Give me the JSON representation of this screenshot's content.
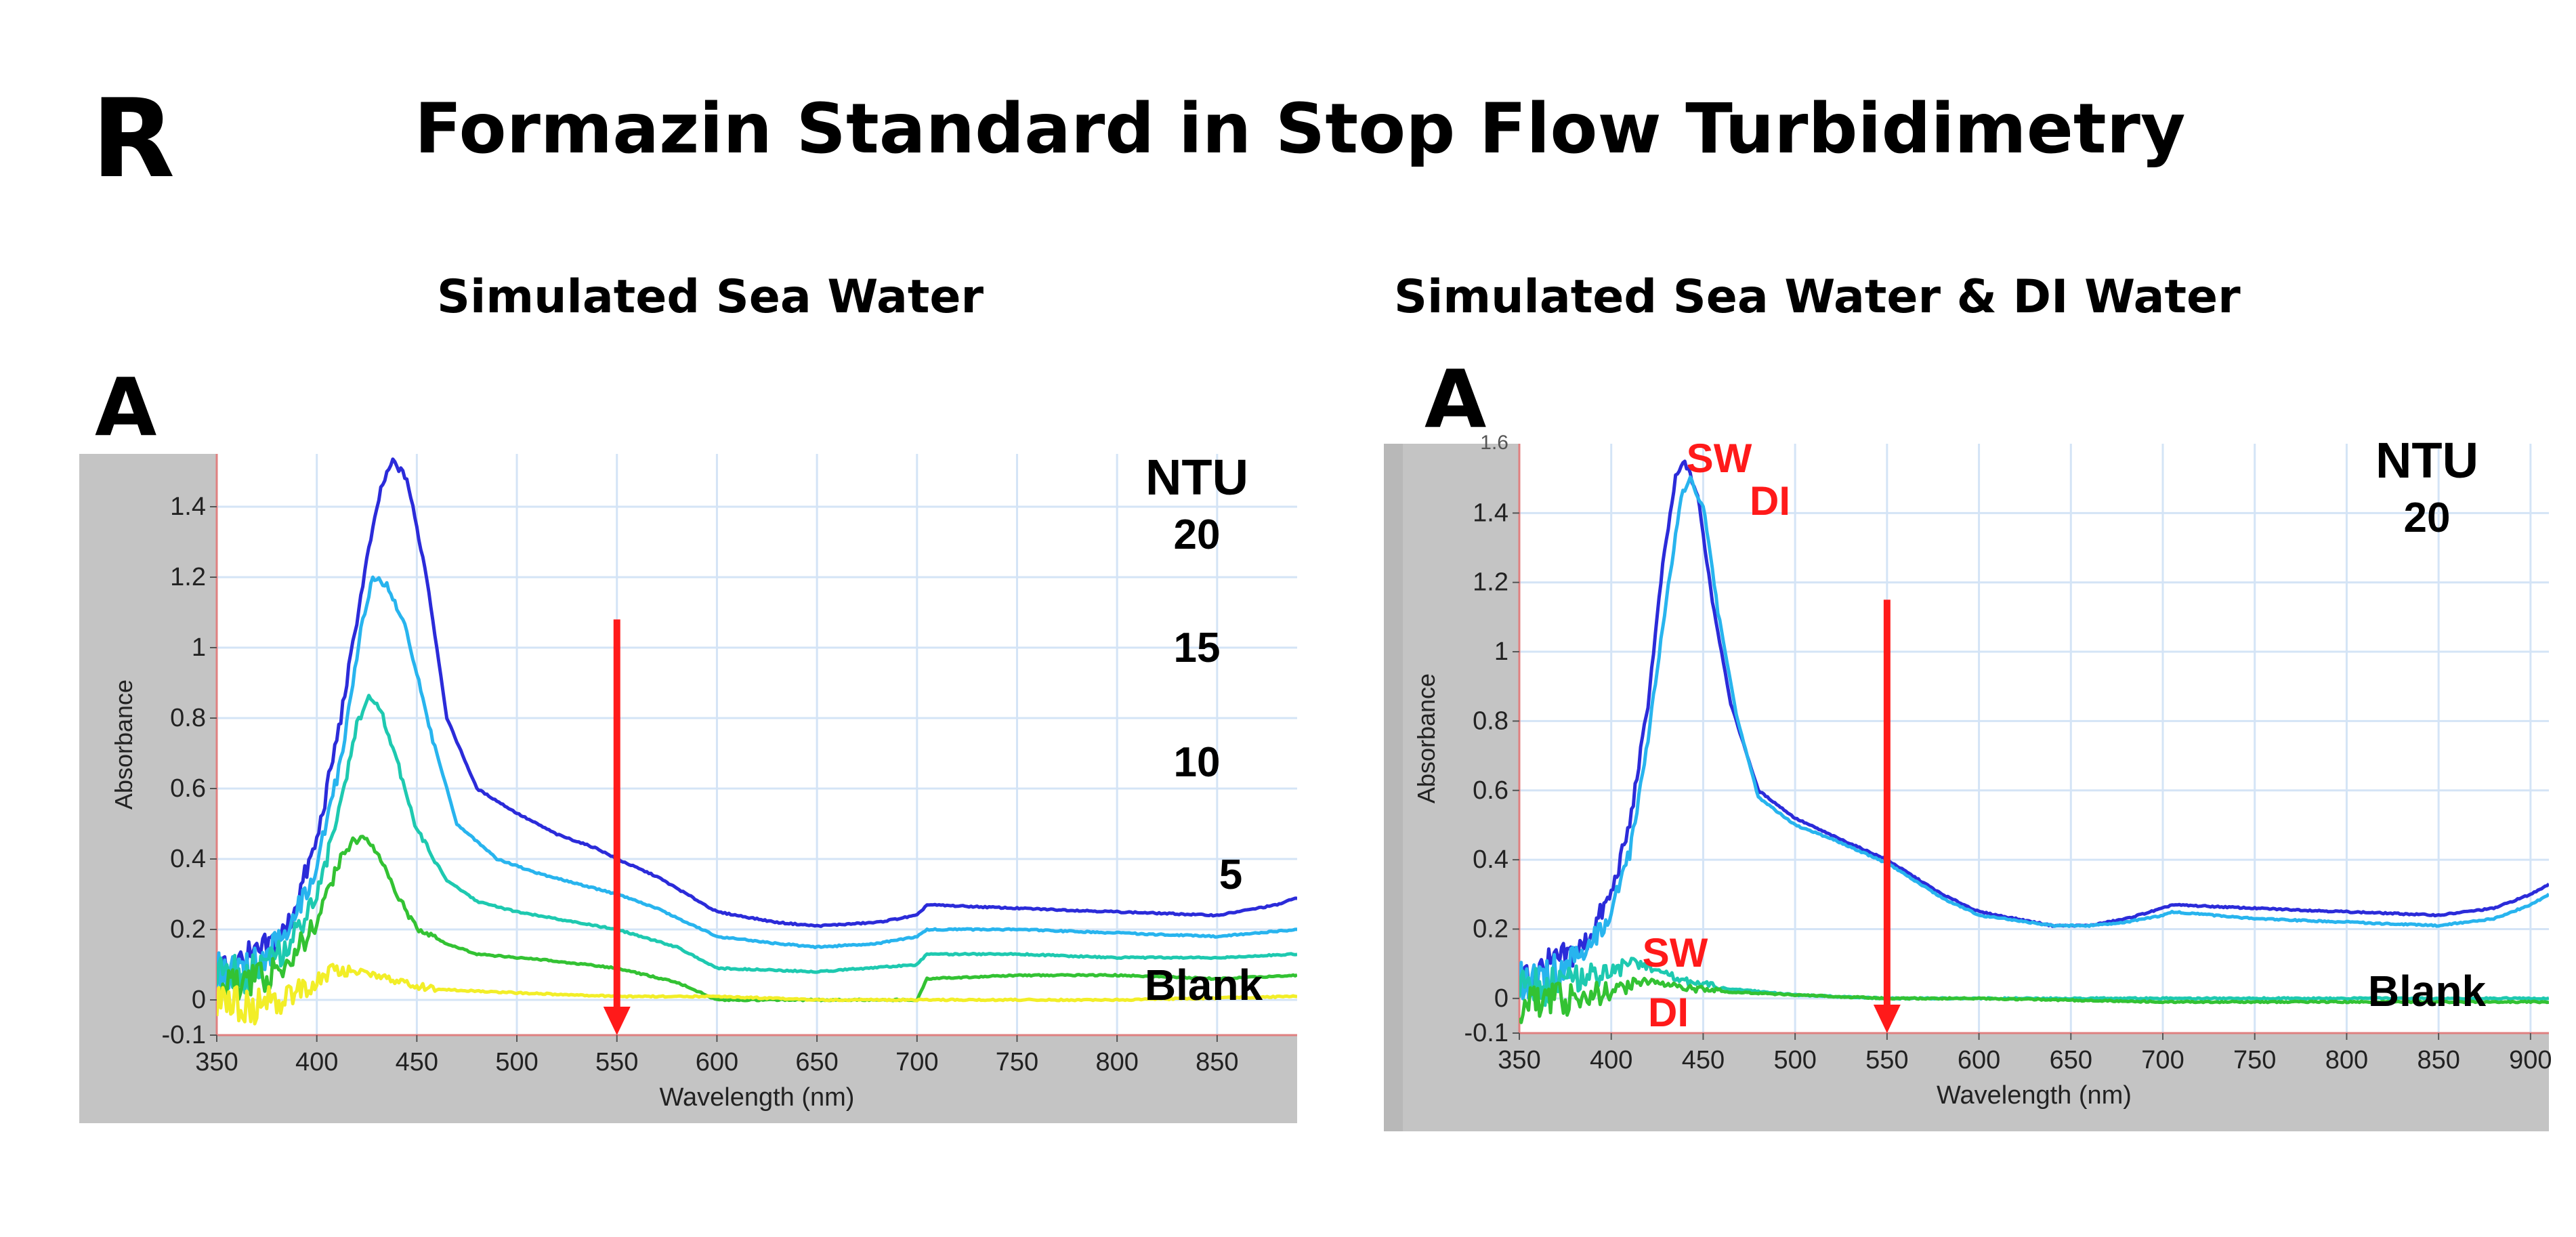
{
  "figure": {
    "panel_letter": "R",
    "title": "Formazin Standard  in Stop Flow Turbidimetry",
    "left_subtitle": "Simulated Sea Water",
    "right_subtitle": "Simulated Sea Water & DI Water",
    "left_panel_tag": "A",
    "right_panel_tag": "A"
  },
  "colors": {
    "ntu20": "#2b2bd9",
    "ntu15": "#28b4ee",
    "ntu10": "#1ec9b0",
    "ntu5": "#33c233",
    "blank": "#f2ee28",
    "marker": "#ff1a1a",
    "grid": "#d4e4f6",
    "frame": "#c4c4c4"
  },
  "chart_data": [
    {
      "type": "line",
      "title": "Simulated Sea Water",
      "xlabel": "Wavelength (nm)",
      "ylabel": "Absorbance",
      "xlim": [
        350,
        890
      ],
      "ylim": [
        -0.1,
        1.55
      ],
      "xticks": [
        350,
        400,
        450,
        500,
        550,
        600,
        650,
        700,
        750,
        800,
        850
      ],
      "yticks": [
        -0.1,
        0,
        0.2,
        0.4,
        0.6,
        0.8,
        1,
        1.2,
        1.4
      ],
      "ytick_labels": [
        "-0.1",
        "0",
        "0.2",
        "0.4",
        "0.6",
        "0.8",
        "1",
        "1.2",
        "1.4"
      ],
      "grid": true,
      "legend_title": "NTU",
      "series": [
        {
          "name": "20",
          "color_key": "ntu20",
          "x": [
            350,
            370,
            385,
            400,
            412,
            425,
            432,
            438,
            445,
            455,
            465,
            480,
            500,
            520,
            540,
            550,
            570,
            600,
            630,
            650,
            680,
            700,
            705,
            750,
            800,
            850,
            880,
            890
          ],
          "y": [
            0.08,
            0.12,
            0.2,
            0.45,
            0.8,
            1.25,
            1.45,
            1.53,
            1.48,
            1.2,
            0.8,
            0.6,
            0.53,
            0.47,
            0.43,
            0.4,
            0.35,
            0.25,
            0.22,
            0.21,
            0.22,
            0.24,
            0.27,
            0.26,
            0.25,
            0.24,
            0.27,
            0.29
          ]
        },
        {
          "name": "15",
          "color_key": "ntu15",
          "x": [
            350,
            370,
            385,
            400,
            412,
            422,
            428,
            435,
            445,
            455,
            470,
            490,
            510,
            530,
            550,
            570,
            600,
            630,
            650,
            680,
            700,
            705,
            750,
            800,
            850,
            890
          ],
          "y": [
            0.07,
            0.1,
            0.18,
            0.38,
            0.68,
            1.05,
            1.2,
            1.18,
            1.05,
            0.8,
            0.5,
            0.4,
            0.36,
            0.33,
            0.3,
            0.26,
            0.18,
            0.16,
            0.15,
            0.16,
            0.18,
            0.2,
            0.2,
            0.19,
            0.18,
            0.2
          ]
        },
        {
          "name": "10",
          "color_key": "ntu10",
          "x": [
            350,
            370,
            385,
            400,
            412,
            420,
            426,
            432,
            440,
            450,
            465,
            480,
            500,
            520,
            550,
            580,
            600,
            650,
            700,
            705,
            750,
            800,
            850,
            890
          ],
          "y": [
            0.06,
            0.08,
            0.14,
            0.3,
            0.55,
            0.78,
            0.86,
            0.82,
            0.68,
            0.48,
            0.34,
            0.28,
            0.25,
            0.23,
            0.2,
            0.15,
            0.09,
            0.08,
            0.1,
            0.13,
            0.13,
            0.12,
            0.12,
            0.13
          ]
        },
        {
          "name": "5",
          "color_key": "ntu5",
          "x": [
            350,
            370,
            385,
            400,
            410,
            418,
            424,
            430,
            440,
            450,
            465,
            480,
            500,
            520,
            550,
            580,
            600,
            650,
            700,
            705,
            750,
            800,
            850,
            890
          ],
          "y": [
            0.03,
            0.05,
            0.1,
            0.22,
            0.38,
            0.45,
            0.46,
            0.42,
            0.3,
            0.2,
            0.16,
            0.13,
            0.12,
            0.11,
            0.09,
            0.05,
            0.0,
            0.0,
            0.0,
            0.06,
            0.07,
            0.07,
            0.06,
            0.07
          ]
        },
        {
          "name": "Blank",
          "color_key": "blank",
          "x": [
            350,
            370,
            390,
            400,
            410,
            420,
            430,
            440,
            460,
            500,
            550,
            600,
            650,
            700,
            800,
            890
          ],
          "y": [
            0.0,
            -0.02,
            0.02,
            0.05,
            0.09,
            0.08,
            0.07,
            0.05,
            0.03,
            0.02,
            0.01,
            0.01,
            0.0,
            0.0,
            0.0,
            0.01
          ]
        }
      ],
      "curve_labels": [
        "20",
        "15",
        "10",
        "5",
        "Blank"
      ],
      "marker": {
        "type": "down-arrow",
        "x": 550,
        "from_y": 1.08,
        "to_y": -0.1
      }
    },
    {
      "type": "line",
      "title": "Simulated Sea Water & DI Water",
      "xlabel": "Wavelength (nm)",
      "ylabel": "Absorbance",
      "xlim": [
        350,
        910
      ],
      "ylim": [
        -0.1,
        1.6
      ],
      "xticks": [
        350,
        400,
        450,
        500,
        550,
        600,
        650,
        700,
        750,
        800,
        850,
        900
      ],
      "xtick_labels": [
        "350",
        "400",
        "450",
        "500",
        "550",
        "600",
        "650",
        "700",
        "750",
        "800",
        "850",
        "900"
      ],
      "yticks": [
        -0.1,
        0,
        0.2,
        0.4,
        0.6,
        0.8,
        1,
        1.2,
        1.4
      ],
      "ytick_labels": [
        "-0.1",
        "0",
        "0.2",
        "0.4",
        "0.6",
        "0.8",
        "1",
        "1.2",
        "1.4"
      ],
      "top_tick_label": "1.6",
      "grid": true,
      "legend_title": "NTU",
      "upper_value_label": "20",
      "series": [
        {
          "name": "SW 20",
          "color_key": "ntu20",
          "x": [
            350,
            370,
            385,
            400,
            410,
            420,
            428,
            435,
            440,
            447,
            455,
            465,
            480,
            500,
            520,
            550,
            580,
            600,
            640,
            660,
            680,
            700,
            705,
            750,
            800,
            850,
            880,
            900,
            910
          ],
          "y": [
            0.05,
            0.1,
            0.15,
            0.3,
            0.5,
            0.85,
            1.25,
            1.5,
            1.55,
            1.45,
            1.15,
            0.85,
            0.6,
            0.52,
            0.47,
            0.4,
            0.3,
            0.25,
            0.21,
            0.21,
            0.23,
            0.26,
            0.27,
            0.26,
            0.25,
            0.24,
            0.26,
            0.3,
            0.33
          ]
        },
        {
          "name": "DI 20",
          "color_key": "ntu15",
          "x": [
            350,
            370,
            385,
            400,
            410,
            420,
            430,
            438,
            443,
            450,
            458,
            468,
            480,
            500,
            520,
            550,
            580,
            600,
            640,
            660,
            680,
            700,
            705,
            750,
            800,
            850,
            880,
            900,
            910
          ],
          "y": [
            0.04,
            0.08,
            0.12,
            0.25,
            0.42,
            0.75,
            1.15,
            1.45,
            1.5,
            1.42,
            1.12,
            0.82,
            0.58,
            0.5,
            0.46,
            0.39,
            0.29,
            0.24,
            0.21,
            0.21,
            0.22,
            0.24,
            0.25,
            0.23,
            0.22,
            0.21,
            0.23,
            0.27,
            0.3
          ]
        },
        {
          "name": "SW Blank",
          "color_key": "ntu10",
          "x": [
            350,
            380,
            400,
            410,
            420,
            430,
            440,
            460,
            500,
            550,
            600,
            700,
            800,
            910
          ],
          "y": [
            0.02,
            0.05,
            0.08,
            0.1,
            0.09,
            0.07,
            0.05,
            0.03,
            0.01,
            0.0,
            0.0,
            0.0,
            0.0,
            0.0
          ]
        },
        {
          "name": "DI Blank",
          "color_key": "ntu5",
          "x": [
            350,
            380,
            400,
            410,
            420,
            430,
            440,
            460,
            500,
            550,
            600,
            700,
            800,
            910
          ],
          "y": [
            -0.02,
            0.0,
            0.02,
            0.04,
            0.05,
            0.04,
            0.03,
            0.02,
            0.01,
            0.0,
            0.0,
            -0.01,
            -0.01,
            -0.01
          ]
        }
      ],
      "curve_labels": {
        "sw_top": "SW",
        "di_top": "DI",
        "sw_bottom": "SW",
        "di_bottom": "DI",
        "blank": "Blank"
      },
      "marker": {
        "type": "down-arrow",
        "x": 550,
        "from_y": 1.15,
        "to_y": -0.1
      }
    }
  ]
}
